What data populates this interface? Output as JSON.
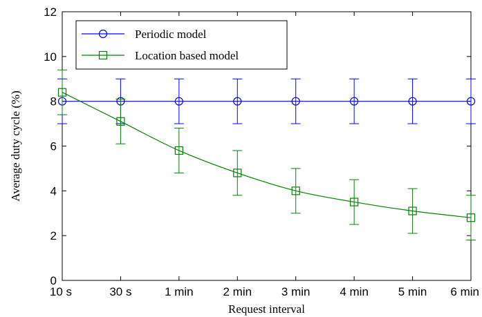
{
  "chart_data": {
    "type": "line",
    "title": "",
    "xlabel": "Request interval",
    "ylabel": "Average duty cycle (%)",
    "categories": [
      "10 s",
      "30 s",
      "1 min",
      "2 min",
      "3 min",
      "4 min",
      "5 min",
      "6 min"
    ],
    "ylim": [
      0,
      12
    ],
    "yticks": [
      0,
      2,
      4,
      6,
      8,
      10,
      12
    ],
    "grid": false,
    "legend_position": "top-left",
    "series": [
      {
        "name": "Periodic model",
        "color": "#0000ff",
        "marker": "circle",
        "values": [
          8,
          8,
          8,
          8,
          8,
          8,
          8,
          8
        ],
        "error_low": [
          7,
          7,
          7,
          7,
          7,
          7,
          7,
          7
        ],
        "error_high": [
          9,
          9,
          9,
          9,
          9,
          9,
          9,
          9
        ]
      },
      {
        "name": "Location based model",
        "color": "#008000",
        "marker": "square",
        "values": [
          8.4,
          7.1,
          5.8,
          4.8,
          4.0,
          3.5,
          3.1,
          2.8
        ],
        "error_low": [
          7.4,
          6.1,
          4.8,
          3.8,
          3.0,
          2.5,
          2.1,
          1.8
        ],
        "error_high": [
          9.4,
          8.1,
          6.8,
          5.8,
          5.0,
          4.5,
          4.1,
          3.8
        ]
      }
    ]
  }
}
